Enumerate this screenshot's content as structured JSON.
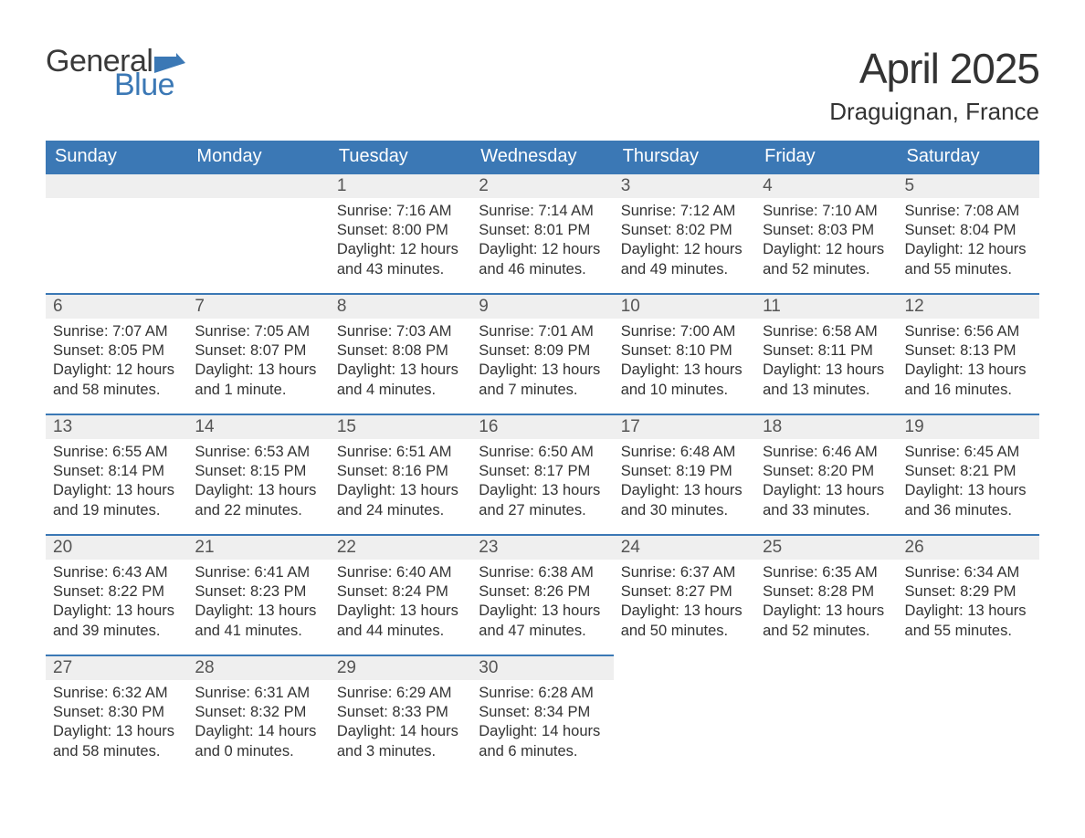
{
  "brand": {
    "word1": "General",
    "word2": "Blue"
  },
  "title": {
    "month": "April 2025",
    "location": "Draguignan, France"
  },
  "colors": {
    "header_bg": "#3b78b5",
    "header_text": "#ffffff",
    "band_bg": "#efefef",
    "band_border": "#3b78b5",
    "text": "#333333",
    "logo_gray": "#3a3a3a",
    "logo_blue": "#3b78b5",
    "page_bg": "#ffffff"
  },
  "labels": {
    "sunrise": "Sunrise: ",
    "sunset": "Sunset: ",
    "daylight": "Daylight: "
  },
  "weekdays": [
    "Sunday",
    "Monday",
    "Tuesday",
    "Wednesday",
    "Thursday",
    "Friday",
    "Saturday"
  ],
  "weeks": [
    [
      null,
      null,
      {
        "n": "1",
        "sr": "7:16 AM",
        "ss": "8:00 PM",
        "dl": "12 hours and 43 minutes."
      },
      {
        "n": "2",
        "sr": "7:14 AM",
        "ss": "8:01 PM",
        "dl": "12 hours and 46 minutes."
      },
      {
        "n": "3",
        "sr": "7:12 AM",
        "ss": "8:02 PM",
        "dl": "12 hours and 49 minutes."
      },
      {
        "n": "4",
        "sr": "7:10 AM",
        "ss": "8:03 PM",
        "dl": "12 hours and 52 minutes."
      },
      {
        "n": "5",
        "sr": "7:08 AM",
        "ss": "8:04 PM",
        "dl": "12 hours and 55 minutes."
      }
    ],
    [
      {
        "n": "6",
        "sr": "7:07 AM",
        "ss": "8:05 PM",
        "dl": "12 hours and 58 minutes."
      },
      {
        "n": "7",
        "sr": "7:05 AM",
        "ss": "8:07 PM",
        "dl": "13 hours and 1 minute."
      },
      {
        "n": "8",
        "sr": "7:03 AM",
        "ss": "8:08 PM",
        "dl": "13 hours and 4 minutes."
      },
      {
        "n": "9",
        "sr": "7:01 AM",
        "ss": "8:09 PM",
        "dl": "13 hours and 7 minutes."
      },
      {
        "n": "10",
        "sr": "7:00 AM",
        "ss": "8:10 PM",
        "dl": "13 hours and 10 minutes."
      },
      {
        "n": "11",
        "sr": "6:58 AM",
        "ss": "8:11 PM",
        "dl": "13 hours and 13 minutes."
      },
      {
        "n": "12",
        "sr": "6:56 AM",
        "ss": "8:13 PM",
        "dl": "13 hours and 16 minutes."
      }
    ],
    [
      {
        "n": "13",
        "sr": "6:55 AM",
        "ss": "8:14 PM",
        "dl": "13 hours and 19 minutes."
      },
      {
        "n": "14",
        "sr": "6:53 AM",
        "ss": "8:15 PM",
        "dl": "13 hours and 22 minutes."
      },
      {
        "n": "15",
        "sr": "6:51 AM",
        "ss": "8:16 PM",
        "dl": "13 hours and 24 minutes."
      },
      {
        "n": "16",
        "sr": "6:50 AM",
        "ss": "8:17 PM",
        "dl": "13 hours and 27 minutes."
      },
      {
        "n": "17",
        "sr": "6:48 AM",
        "ss": "8:19 PM",
        "dl": "13 hours and 30 minutes."
      },
      {
        "n": "18",
        "sr": "6:46 AM",
        "ss": "8:20 PM",
        "dl": "13 hours and 33 minutes."
      },
      {
        "n": "19",
        "sr": "6:45 AM",
        "ss": "8:21 PM",
        "dl": "13 hours and 36 minutes."
      }
    ],
    [
      {
        "n": "20",
        "sr": "6:43 AM",
        "ss": "8:22 PM",
        "dl": "13 hours and 39 minutes."
      },
      {
        "n": "21",
        "sr": "6:41 AM",
        "ss": "8:23 PM",
        "dl": "13 hours and 41 minutes."
      },
      {
        "n": "22",
        "sr": "6:40 AM",
        "ss": "8:24 PM",
        "dl": "13 hours and 44 minutes."
      },
      {
        "n": "23",
        "sr": "6:38 AM",
        "ss": "8:26 PM",
        "dl": "13 hours and 47 minutes."
      },
      {
        "n": "24",
        "sr": "6:37 AM",
        "ss": "8:27 PM",
        "dl": "13 hours and 50 minutes."
      },
      {
        "n": "25",
        "sr": "6:35 AM",
        "ss": "8:28 PM",
        "dl": "13 hours and 52 minutes."
      },
      {
        "n": "26",
        "sr": "6:34 AM",
        "ss": "8:29 PM",
        "dl": "13 hours and 55 minutes."
      }
    ],
    [
      {
        "n": "27",
        "sr": "6:32 AM",
        "ss": "8:30 PM",
        "dl": "13 hours and 58 minutes."
      },
      {
        "n": "28",
        "sr": "6:31 AM",
        "ss": "8:32 PM",
        "dl": "14 hours and 0 minutes."
      },
      {
        "n": "29",
        "sr": "6:29 AM",
        "ss": "8:33 PM",
        "dl": "14 hours and 3 minutes."
      },
      {
        "n": "30",
        "sr": "6:28 AM",
        "ss": "8:34 PM",
        "dl": "14 hours and 6 minutes."
      },
      null,
      null,
      null
    ]
  ]
}
